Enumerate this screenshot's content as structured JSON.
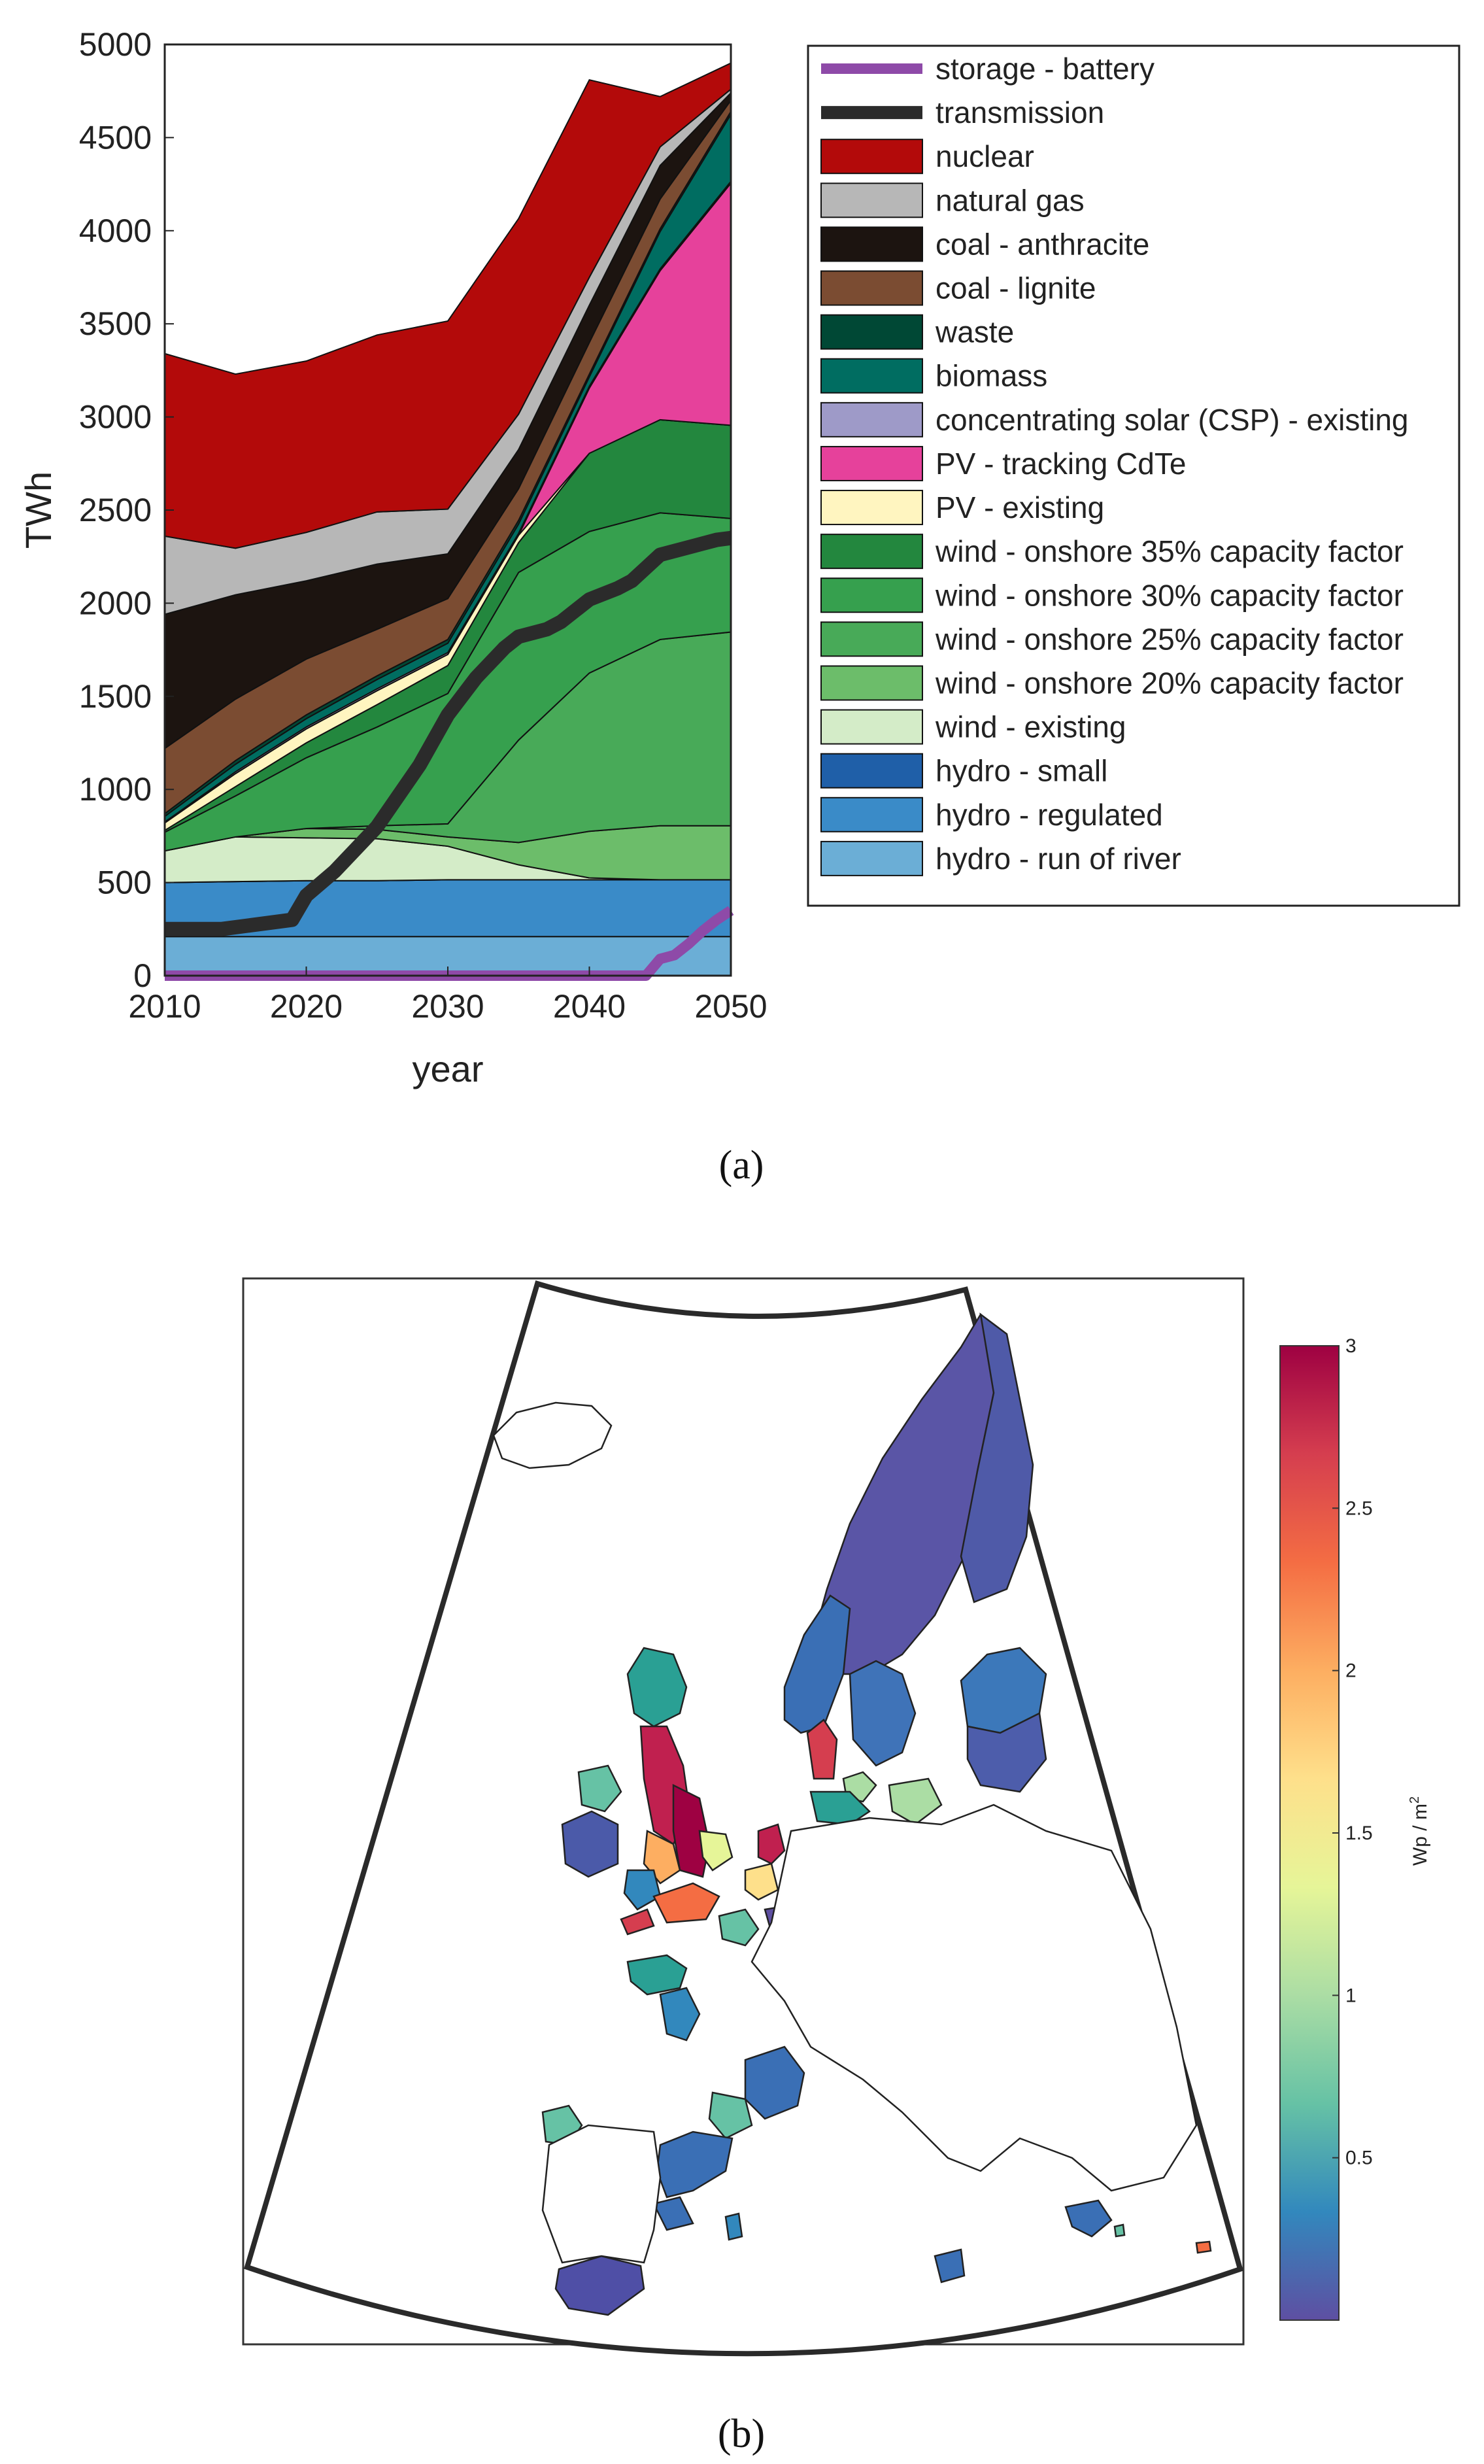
{
  "panel_a_label": "(a)",
  "panel_b_label": "(b)",
  "chart_data": [
    {
      "type": "area",
      "title": "",
      "xlabel": "year",
      "ylabel": "TWh",
      "xlim": [
        2010,
        2050
      ],
      "ylim": [
        0,
        5000
      ],
      "xticks": [
        2010,
        2020,
        2030,
        2040,
        2050
      ],
      "yticks": [
        0,
        500,
        1000,
        1500,
        2000,
        2500,
        3000,
        3500,
        4000,
        4500,
        5000
      ],
      "legend_position": "outside-right",
      "x": [
        2010,
        2015,
        2020,
        2025,
        2030,
        2035,
        2040,
        2045,
        2050
      ],
      "stacked_series": [
        {
          "name": "hydro - run of river",
          "color": "#6baed6",
          "values": [
            210,
            210,
            210,
            210,
            210,
            210,
            210,
            210,
            210
          ]
        },
        {
          "name": "hydro - regulated",
          "color": "#3a8bc8",
          "values": [
            290,
            295,
            300,
            300,
            305,
            305,
            305,
            305,
            305
          ]
        },
        {
          "name": "hydro - small",
          "color": "#1f5fa8",
          "values": [
            0,
            0,
            0,
            0,
            0,
            0,
            0,
            0,
            0
          ]
        },
        {
          "name": "wind - existing",
          "color": "#d4ecc8",
          "values": [
            170,
            240,
            230,
            225,
            180,
            80,
            10,
            0,
            0
          ]
        },
        {
          "name": "wind - onshore 20% capacity factor",
          "color": "#6cbd6a",
          "values": [
            0,
            0,
            50,
            50,
            50,
            120,
            250,
            290,
            290
          ]
        },
        {
          "name": "wind - onshore 25% capacity factor",
          "color": "#48aa58",
          "values": [
            0,
            0,
            0,
            20,
            70,
            550,
            850,
            1000,
            1040
          ]
        },
        {
          "name": "wind - onshore 30% capacity factor",
          "color": "#36a04e",
          "values": [
            100,
            220,
            380,
            530,
            700,
            900,
            760,
            680,
            610
          ]
        },
        {
          "name": "wind - onshore 35% capacity factor",
          "color": "#23873e",
          "values": [
            10,
            50,
            80,
            120,
            150,
            160,
            420,
            500,
            500
          ]
        },
        {
          "name": "PV - existing",
          "color": "#fff5c0",
          "values": [
            40,
            70,
            75,
            75,
            60,
            40,
            0,
            0,
            0
          ]
        },
        {
          "name": "PV - tracking CdTe",
          "color": "#e6419b",
          "values": [
            0,
            0,
            0,
            0,
            0,
            0,
            350,
            800,
            1300
          ]
        },
        {
          "name": "concentrating solar (CSP) - existing",
          "color": "#9e9ac8",
          "values": [
            5,
            10,
            10,
            10,
            10,
            10,
            10,
            10,
            10
          ]
        },
        {
          "name": "biomass",
          "color": "#006d61",
          "values": [
            30,
            40,
            45,
            50,
            50,
            50,
            50,
            200,
            360
          ]
        },
        {
          "name": "waste",
          "color": "#004835",
          "values": [
            15,
            20,
            20,
            20,
            20,
            20,
            15,
            15,
            15
          ]
        },
        {
          "name": "coal - lignite",
          "color": "#7b4c32",
          "values": [
            350,
            330,
            300,
            250,
            220,
            170,
            170,
            160,
            60
          ]
        },
        {
          "name": "coal - anthracite",
          "color": "#1c1410",
          "values": [
            720,
            560,
            420,
            350,
            240,
            210,
            200,
            180,
            40
          ]
        },
        {
          "name": "natural gas",
          "color": "#b7b7b7",
          "values": [
            420,
            250,
            260,
            280,
            240,
            190,
            150,
            100,
            20
          ]
        },
        {
          "name": "nuclear",
          "color": "#b30a0a",
          "values": [
            980,
            935,
            920,
            950,
            1010,
            1050,
            1060,
            270,
            140
          ]
        }
      ],
      "line_series": [
        {
          "name": "transmission",
          "color": "#2b2b2b",
          "x": [
            2010,
            2014,
            2016,
            2018,
            2019,
            2020,
            2022,
            2025,
            2028,
            2030,
            2032,
            2034,
            2035,
            2037,
            2038,
            2039,
            2040,
            2042,
            2043,
            2044,
            2045,
            2047,
            2048,
            2049,
            2050
          ],
          "values": [
            250,
            250,
            270,
            290,
            300,
            430,
            560,
            800,
            1130,
            1400,
            1600,
            1760,
            1820,
            1860,
            1900,
            1960,
            2020,
            2080,
            2120,
            2190,
            2260,
            2300,
            2320,
            2340,
            2350
          ]
        },
        {
          "name": "storage - battery",
          "color": "#8e4aa8",
          "x": [
            2010,
            2044,
            2045,
            2046,
            2047,
            2048,
            2049,
            2050
          ],
          "values": [
            0,
            0,
            90,
            110,
            170,
            240,
            300,
            350
          ]
        }
      ],
      "legend_order": [
        "storage - battery",
        "transmission",
        "nuclear",
        "natural gas",
        "coal - anthracite",
        "coal - lignite",
        "waste",
        "biomass",
        "concentrating solar (CSP) - existing",
        "PV - tracking CdTe",
        "PV - existing",
        "wind - onshore 35% capacity factor",
        "wind - onshore 30% capacity factor",
        "wind - onshore 25% capacity factor",
        "wind - onshore 20% capacity factor",
        "wind - existing",
        "hydro - small",
        "hydro - regulated",
        "hydro - run of river"
      ]
    },
    {
      "type": "heatmap",
      "title": "",
      "colorbar_label": "Wp / m",
      "colorbar_label_sup": "2",
      "colorbar_range": [
        0,
        3
      ],
      "colorbar_ticks": [
        0.5,
        1,
        1.5,
        2,
        2.5,
        3
      ],
      "colorbar_tick_labels": [
        "0.5",
        "1",
        "1.5",
        "2",
        "2.5",
        "3"
      ],
      "colorbar_colors": [
        "#5e4fa2",
        "#3288bd",
        "#66c2a5",
        "#abdda4",
        "#e6f598",
        "#fee08b",
        "#fdae61",
        "#f46d43",
        "#d53e4f",
        "#9e0142"
      ]
    }
  ]
}
